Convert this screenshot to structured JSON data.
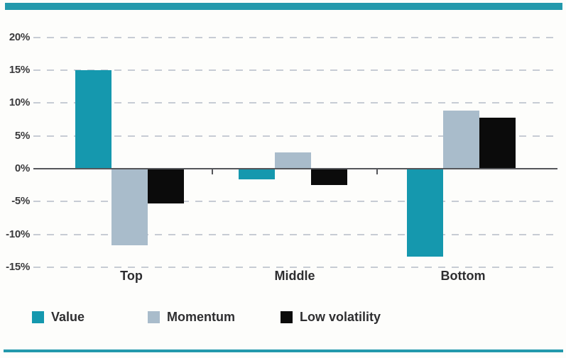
{
  "decor": {
    "top_bar_color": "#2399AC",
    "bottom_line_color": "#2399AC"
  },
  "chart_data": {
    "type": "bar",
    "categories": [
      "Top",
      "Middle",
      "Bottom"
    ],
    "series": [
      {
        "name": "Value",
        "color": "#1598AE",
        "values": [
          15.0,
          -1.6,
          -13.4
        ]
      },
      {
        "name": "Momentum",
        "color": "#A9BCCB",
        "values": [
          -11.7,
          2.5,
          8.9
        ]
      },
      {
        "name": "Low volatility",
        "color": "#0B0B0B",
        "values": [
          -5.3,
          -2.5,
          7.8
        ]
      }
    ],
    "y_ticks": [
      20,
      15,
      10,
      5,
      0,
      -5,
      -10,
      -15
    ],
    "y_tick_labels": [
      "20%",
      "15%",
      "10%",
      "5%",
      "0%",
      "-5%",
      "-10%",
      "-15%"
    ],
    "y_tick_suffix": "%",
    "ylim": [
      -17.5,
      22.5
    ],
    "grid": "dashed-horizontal",
    "zero_line": true,
    "legend_position": "bottom"
  }
}
